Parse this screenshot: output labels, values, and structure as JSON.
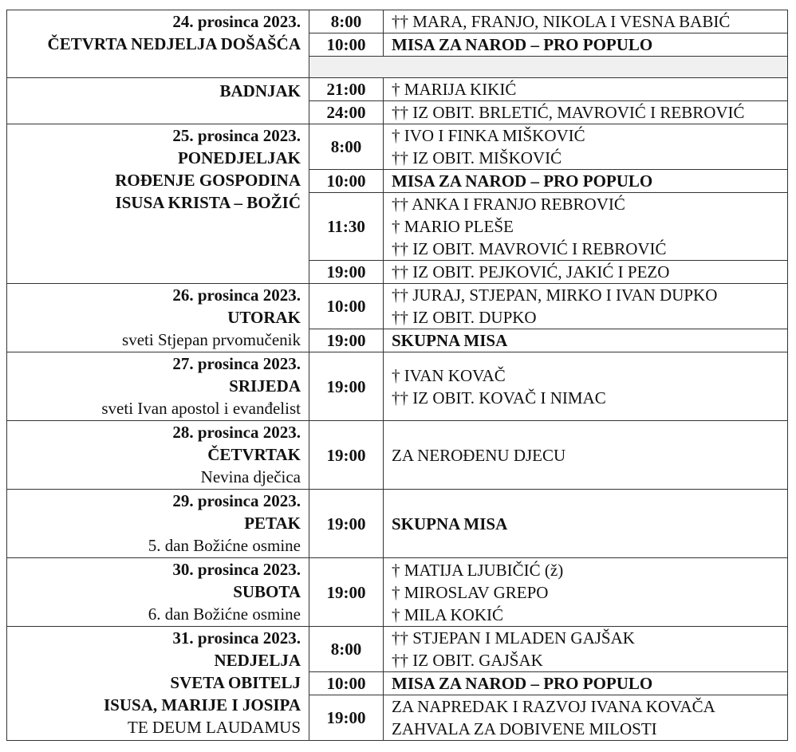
{
  "schedule": [
    {
      "blocks": [
        {
          "labels": [
            {
              "text": "24. prosinca 2023.",
              "bold": true
            },
            {
              "text": "ČETVRTA NEDJELJA DOŠAŠĆA",
              "bold": true
            }
          ],
          "masses": [
            {
              "time": "8:00",
              "lines": [
                {
                  "text": "†† MARA, FRANJO, NIKOLA I VESNA BABIĆ",
                  "bold": false
                }
              ]
            },
            {
              "time": "10:00",
              "lines": [
                {
                  "text": "MISA ZA NAROD – PRO POPULO",
                  "bold": true
                }
              ]
            },
            {
              "gap": true
            }
          ]
        },
        {
          "labels": [
            {
              "text": "BADNJAK",
              "bold": true
            }
          ],
          "masses": [
            {
              "time": "21:00",
              "lines": [
                {
                  "text": "† MARIJA KIKIĆ",
                  "bold": false
                }
              ]
            },
            {
              "time": "24:00",
              "lines": [
                {
                  "text": "†† IZ OBIT. BRLETIĆ, MAVROVIĆ I REBROVIĆ",
                  "bold": false
                }
              ]
            }
          ]
        }
      ]
    },
    {
      "blocks": [
        {
          "labels": [
            {
              "text": "25. prosinca 2023.",
              "bold": true
            },
            {
              "text": "PONEDJELJAK",
              "bold": true
            },
            {
              "text": "ROĐENJE GOSPODINA",
              "bold": true
            },
            {
              "text": "ISUSA KRISTA – BOŽIĆ",
              "bold": true
            }
          ],
          "masses": [
            {
              "time": "8:00",
              "lines": [
                {
                  "text": "† IVO I FINKA MIŠKOVIĆ",
                  "bold": false
                },
                {
                  "text": "†† IZ OBIT. MIŠKOVIĆ",
                  "bold": false
                }
              ]
            },
            {
              "time": "10:00",
              "lines": [
                {
                  "text": "MISA ZA NAROD – PRO POPULO",
                  "bold": true
                }
              ]
            },
            {
              "time": "11:30",
              "lines": [
                {
                  "text": "†† ANKA I FRANJO REBROVIĆ",
                  "bold": false
                },
                {
                  "text": "† MARIO PLEŠE",
                  "bold": false
                },
                {
                  "text": "†† IZ OBIT. MAVROVIĆ I REBROVIĆ",
                  "bold": false
                }
              ]
            },
            {
              "time": "19:00",
              "lines": [
                {
                  "text": "†† IZ OBIT. PEJKOVIĆ, JAKIĆ I PEZO",
                  "bold": false
                }
              ]
            }
          ]
        }
      ]
    },
    {
      "blocks": [
        {
          "labels": [
            {
              "text": "26. prosinca 2023.",
              "bold": true
            },
            {
              "text": "UTORAK",
              "bold": true
            },
            {
              "text": "sveti Stjepan prvomučenik",
              "bold": false
            }
          ],
          "masses": [
            {
              "time": "10:00",
              "lines": [
                {
                  "text": "†† JURAJ, STJEPAN, MIRKO I IVAN DUPKO",
                  "bold": false
                },
                {
                  "text": "†† IZ OBIT. DUPKO",
                  "bold": false
                }
              ]
            },
            {
              "time": "19:00",
              "lines": [
                {
                  "text": "SKUPNA MISA",
                  "bold": true
                }
              ]
            }
          ]
        }
      ]
    },
    {
      "blocks": [
        {
          "labels": [
            {
              "text": "27. prosinca 2023.",
              "bold": true
            },
            {
              "text": "SRIJEDA",
              "bold": true
            },
            {
              "text": "sveti Ivan apostol i evanđelist",
              "bold": false
            }
          ],
          "masses": [
            {
              "time": "19:00",
              "lines": [
                {
                  "text": "† IVAN KOVAČ",
                  "bold": false
                },
                {
                  "text": "†† IZ OBIT. KOVAČ I NIMAC",
                  "bold": false
                }
              ]
            }
          ]
        }
      ]
    },
    {
      "blocks": [
        {
          "labels": [
            {
              "text": "28. prosinca 2023.",
              "bold": true
            },
            {
              "text": "ČETVRTAK",
              "bold": true
            },
            {
              "text": "Nevina dječica",
              "bold": false
            }
          ],
          "masses": [
            {
              "time": "19:00",
              "lines": [
                {
                  "text": "ZA NEROĐENU DJECU",
                  "bold": false
                }
              ]
            }
          ]
        }
      ]
    },
    {
      "blocks": [
        {
          "labels": [
            {
              "text": "29. prosinca 2023.",
              "bold": true
            },
            {
              "text": "PETAK",
              "bold": true
            },
            {
              "text": "5. dan Božićne osmine",
              "bold": false
            }
          ],
          "masses": [
            {
              "time": "19:00",
              "lines": [
                {
                  "text": "SKUPNA MISA",
                  "bold": true
                }
              ]
            }
          ]
        }
      ]
    },
    {
      "blocks": [
        {
          "labels": [
            {
              "text": "30. prosinca 2023.",
              "bold": true
            },
            {
              "text": "SUBOTA",
              "bold": true
            },
            {
              "text": "6. dan Božićne osmine",
              "bold": false
            }
          ],
          "masses": [
            {
              "time": "19:00",
              "lines": [
                {
                  "text": "† MATIJA LJUBIČIĆ (ž)",
                  "bold": false
                },
                {
                  "text": "† MIROSLAV GREPO",
                  "bold": false
                },
                {
                  "text": "† MILA KOKIĆ",
                  "bold": false
                }
              ]
            }
          ]
        }
      ]
    },
    {
      "blocks": [
        {
          "labels": [
            {
              "text": "31. prosinca 2023.",
              "bold": true
            },
            {
              "text": "NEDJELJA",
              "bold": true
            },
            {
              "text": "SVETA OBITELJ",
              "bold": true
            },
            {
              "text": "ISUSA, MARIJE I JOSIPA",
              "bold": true
            },
            {
              "text": "TE DEUM LAUDAMUS",
              "bold": false
            }
          ],
          "masses": [
            {
              "time": "8:00",
              "lines": [
                {
                  "text": "†† STJEPAN I MLADEN GAJŠAK",
                  "bold": false
                },
                {
                  "text": "†† IZ OBIT. GAJŠAK",
                  "bold": false
                }
              ]
            },
            {
              "time": "10:00",
              "lines": [
                {
                  "text": "MISA ZA NAROD – PRO POPULO",
                  "bold": true
                }
              ]
            },
            {
              "time": "19:00",
              "lines": [
                {
                  "text": "ZA NAPREDAK I RAZVOJ IVANA KOVAČA",
                  "bold": false
                },
                {
                  "text": "ZAHVALA ZA DOBIVENE MILOSTI",
                  "bold": false
                }
              ]
            }
          ]
        }
      ]
    }
  ]
}
